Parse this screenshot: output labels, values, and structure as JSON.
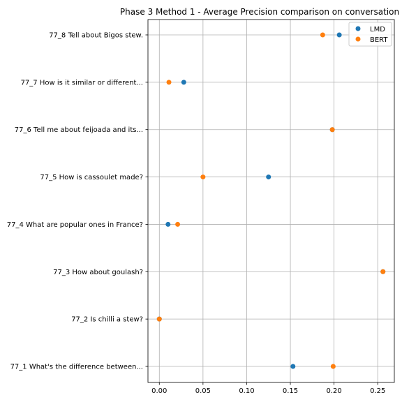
{
  "chart_data": {
    "type": "scatter",
    "title": "Phase 3 Method 1 - Average Precision comparison on conversation",
    "categories": [
      "77_8 Tell about Bigos stew.",
      "77_7 How is it similar or different...",
      "77_6 Tell me about feijoada and its...",
      "77_5 How is cassoulet made?",
      "77_4 What are popular ones in France?",
      "77_3 How about goulash?",
      "77_2 Is chilli a stew?",
      "77_1 What's the difference between..."
    ],
    "series": [
      {
        "name": "LMD",
        "color": "#1f77b4",
        "values": [
          0.206,
          0.028,
          0.198,
          0.125,
          0.01,
          0.256,
          0.0,
          0.153
        ]
      },
      {
        "name": "BERT",
        "color": "#ff7f0e",
        "values": [
          0.187,
          0.011,
          0.198,
          0.05,
          0.021,
          0.256,
          0.0,
          0.199
        ]
      }
    ],
    "xticks": [
      "0.00",
      "0.05",
      "0.10",
      "0.15",
      "0.20",
      "0.25"
    ],
    "xlim": [
      -0.013,
      0.269
    ],
    "grid": true,
    "legend_position": "top-right"
  }
}
